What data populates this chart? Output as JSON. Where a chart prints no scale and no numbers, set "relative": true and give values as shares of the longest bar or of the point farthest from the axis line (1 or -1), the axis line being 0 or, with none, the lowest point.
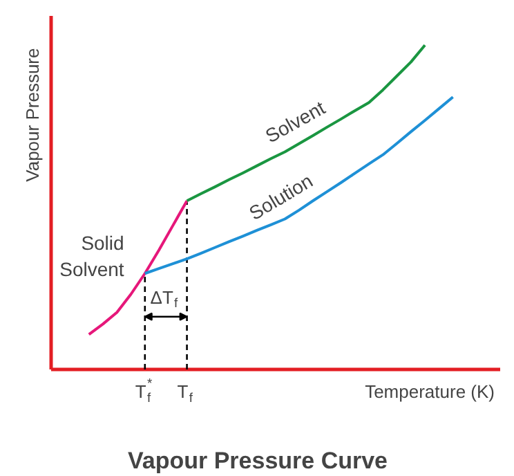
{
  "chart_data": {
    "type": "line",
    "relative": true,
    "title": "Vapour Pressure Curve",
    "xlabel": "Temperature (K)",
    "ylabel": "Vapour Pressure",
    "categories": [
      null,
      null,
      null,
      null,
      "T$_{f}$$^{*}$",
      null,
      null,
      "T$_{f}$",
      null,
      null,
      null,
      null,
      null,
      null,
      null,
      null,
      null,
      null,
      null,
      null,
      null,
      null,
      null,
      null,
      null,
      null,
      null
    ],
    "series": [
      {
        "name": "Solid\nSolvent",
        "color": "#e6177a",
        "values": [
          0.108,
          0.14,
          0.176,
          0.232,
          0.296,
          0.368,
          0.444,
          0.52,
          null,
          null,
          null,
          null,
          null,
          null,
          null,
          null,
          null,
          null,
          null,
          null,
          null,
          null,
          null,
          null,
          null,
          null,
          null
        ]
      },
      {
        "name": "Solvent",
        "color": "#1a9641",
        "values": [
          null,
          null,
          null,
          null,
          null,
          null,
          null,
          0.52,
          0.542,
          0.563,
          0.585,
          0.606,
          0.628,
          0.65,
          0.671,
          0.696,
          0.721,
          0.747,
          0.772,
          0.798,
          0.823,
          0.862,
          0.905,
          0.948,
          1.0,
          null,
          null
        ]
      },
      {
        "name": "Solution",
        "color": "#1e90d6",
        "values": [
          null,
          null,
          null,
          null,
          0.296,
          0.311,
          0.326,
          0.341,
          0.358,
          0.376,
          0.394,
          0.411,
          0.429,
          0.446,
          0.464,
          0.491,
          0.52,
          0.548,
          0.576,
          0.605,
          0.634,
          0.662,
          0.697,
          0.733,
          0.768,
          0.804,
          0.84
        ]
      }
    ],
    "ref_lines": [
      {
        "axis": "x",
        "value": "T$_{f}$$^{*}$",
        "line_style": "dashed"
      },
      {
        "axis": "x",
        "value": "T$_{f}$",
        "line_style": "dashed"
      }
    ],
    "annotations": [
      "ΔT$_{f}$"
    ],
    "grid": false,
    "marker": "none",
    "line_style": "solid"
  }
}
